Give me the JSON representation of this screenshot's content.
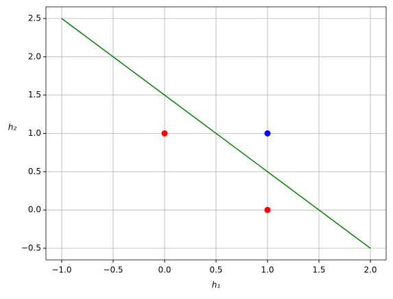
{
  "chart_data": {
    "type": "scatter",
    "xlabel": "h₁",
    "ylabel": "h₂",
    "xlim": [
      -1.153,
      2.153
    ],
    "ylim": [
      -0.652,
      2.652
    ],
    "xticks": [
      {
        "value": -1.0,
        "label": "−1.0"
      },
      {
        "value": -0.5,
        "label": "−0.5"
      },
      {
        "value": 0.0,
        "label": "0.0"
      },
      {
        "value": 0.5,
        "label": "0.5"
      },
      {
        "value": 1.0,
        "label": "1.0"
      },
      {
        "value": 1.5,
        "label": "1.5"
      },
      {
        "value": 2.0,
        "label": "2.0"
      }
    ],
    "yticks": [
      {
        "value": -0.5,
        "label": "−0.5"
      },
      {
        "value": 0.0,
        "label": "0.0"
      },
      {
        "value": 0.5,
        "label": "0.5"
      },
      {
        "value": 1.0,
        "label": "1.0"
      },
      {
        "value": 1.5,
        "label": "1.5"
      },
      {
        "value": 2.0,
        "label": "2.0"
      },
      {
        "value": 2.5,
        "label": "2.5"
      }
    ],
    "grid": true,
    "series": [
      {
        "type": "line",
        "color": "#008000",
        "x": [
          -1,
          2
        ],
        "values": [
          2.5,
          -0.5
        ]
      },
      {
        "type": "scatter",
        "color": "#ff0000",
        "x": [
          0,
          1
        ],
        "values": [
          1,
          0
        ]
      },
      {
        "type": "scatter",
        "color": "#0000ff",
        "x": [
          1
        ],
        "values": [
          1
        ]
      }
    ]
  }
}
